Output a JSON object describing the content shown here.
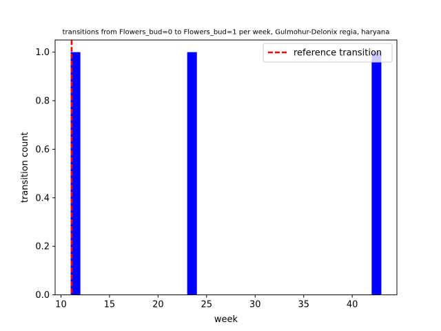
{
  "chart_data": {
    "type": "bar",
    "title": "transitions from Flowers_bud=0 to Flowers_bud=1 per week, Gulmohur-Delonix regia, haryana",
    "xlabel": "week",
    "ylabel": "transition count",
    "xlim": [
      9.4,
      44.6
    ],
    "ylim": [
      0,
      1.05
    ],
    "xticks": [
      10,
      15,
      20,
      25,
      30,
      35,
      40
    ],
    "yticks": [
      0.0,
      0.2,
      0.4,
      0.6,
      0.8,
      1.0
    ],
    "bar_width": 1.0,
    "bar_color": "#0000ff",
    "series": [
      {
        "x": [
          11.5,
          23.5,
          42.5
        ],
        "values": [
          1,
          1,
          1
        ]
      }
    ],
    "reference_line": {
      "x": 11.1,
      "color": "#ff0000",
      "style": "dashed"
    },
    "legend": {
      "placement": "top-right",
      "entries": [
        {
          "label": "reference transition",
          "color": "#ff0000",
          "style": "dashed"
        }
      ]
    },
    "grid": false
  }
}
